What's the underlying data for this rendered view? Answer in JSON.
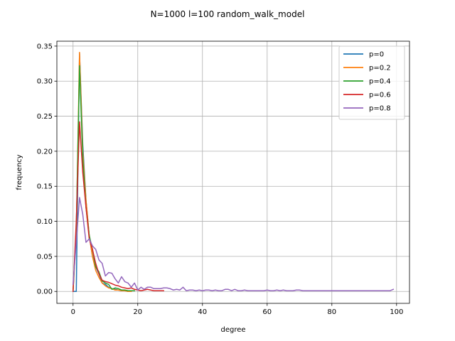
{
  "chart_data": {
    "type": "line",
    "title": "N=1000 l=100 random_walk_model",
    "xlabel": "degree",
    "ylabel": "frequency",
    "xlim": [
      -5,
      104
    ],
    "ylim": [
      -0.017,
      0.357
    ],
    "xticks": [
      0,
      20,
      40,
      60,
      80,
      100
    ],
    "yticks": [
      0.0,
      0.05,
      0.1,
      0.15,
      0.2,
      0.25,
      0.3,
      0.35
    ],
    "xtick_labels": [
      "0",
      "20",
      "40",
      "60",
      "80",
      "100"
    ],
    "ytick_labels": [
      "0.00",
      "0.05",
      "0.10",
      "0.15",
      "0.20",
      "0.25",
      "0.30",
      "0.35"
    ],
    "grid": true,
    "legend_position": "top-right",
    "series": [
      {
        "name": "p=0",
        "color": "#1f77b4",
        "x": [
          0,
          1,
          2,
          3,
          4,
          5,
          6,
          7,
          8,
          9,
          10,
          11,
          12,
          13,
          14,
          15,
          16,
          17,
          18
        ],
        "y": [
          0.0,
          0.0,
          0.34,
          0.21,
          0.13,
          0.08,
          0.05,
          0.035,
          0.025,
          0.012,
          0.01,
          0.006,
          0.004,
          0.003,
          0.002,
          0.001,
          0.001,
          0.0,
          0.0
        ]
      },
      {
        "name": "p=0.2",
        "color": "#ff7f0e",
        "x": [
          0,
          1,
          2,
          3,
          4,
          5,
          6,
          7,
          8,
          9,
          10,
          11,
          12,
          13,
          14,
          15,
          16,
          17,
          18
        ],
        "y": [
          0.0,
          0.08,
          0.341,
          0.2,
          0.13,
          0.08,
          0.05,
          0.03,
          0.02,
          0.012,
          0.008,
          0.005,
          0.004,
          0.002,
          0.002,
          0.001,
          0.001,
          0.0,
          0.0
        ]
      },
      {
        "name": "p=0.4",
        "color": "#2ca02c",
        "x": [
          0,
          1,
          2,
          3,
          4,
          5,
          6,
          7,
          8,
          9,
          10,
          11,
          12,
          13,
          14,
          15,
          16,
          17,
          18,
          19
        ],
        "y": [
          0.0,
          0.09,
          0.322,
          0.19,
          0.12,
          0.08,
          0.06,
          0.035,
          0.028,
          0.015,
          0.012,
          0.01,
          0.003,
          0.005,
          0.004,
          0.002,
          0.002,
          0.001,
          0.001,
          0.001
        ]
      },
      {
        "name": "p=0.6",
        "color": "#d62728",
        "x": [
          0,
          1,
          2,
          3,
          4,
          5,
          6,
          7,
          8,
          9,
          10,
          11,
          12,
          13,
          14,
          15,
          16,
          17,
          18,
          19,
          20,
          21,
          22,
          23,
          24,
          25,
          26,
          27,
          28
        ],
        "y": [
          0.0,
          0.1,
          0.242,
          0.17,
          0.12,
          0.075,
          0.06,
          0.04,
          0.025,
          0.016,
          0.014,
          0.013,
          0.011,
          0.009,
          0.008,
          0.006,
          0.005,
          0.004,
          0.005,
          0.003,
          0.002,
          0.001,
          0.002,
          0.003,
          0.002,
          0.001,
          0.001,
          0.001,
          0.001
        ]
      },
      {
        "name": "p=0.8",
        "color": "#9467bd",
        "x": [
          0,
          1,
          2,
          3,
          4,
          5,
          6,
          7,
          8,
          9,
          10,
          11,
          12,
          13,
          14,
          15,
          16,
          17,
          18,
          19,
          20,
          21,
          22,
          23,
          24,
          25,
          26,
          27,
          28,
          29,
          30,
          31,
          32,
          33,
          34,
          35,
          36,
          37,
          38,
          39,
          40,
          41,
          42,
          43,
          44,
          45,
          46,
          47,
          48,
          49,
          50,
          51,
          52,
          53,
          54,
          55,
          56,
          57,
          58,
          59,
          60,
          61,
          62,
          63,
          64,
          65,
          66,
          67,
          68,
          69,
          70,
          71,
          72,
          73,
          74,
          75,
          76,
          77,
          78,
          79,
          80,
          81,
          82,
          83,
          84,
          85,
          86,
          87,
          88,
          89,
          90,
          91,
          92,
          93,
          94,
          95,
          96,
          97,
          98,
          99
        ],
        "y": [
          0.01,
          0.07,
          0.134,
          0.11,
          0.07,
          0.075,
          0.065,
          0.06,
          0.045,
          0.04,
          0.022,
          0.027,
          0.026,
          0.018,
          0.012,
          0.021,
          0.014,
          0.012,
          0.006,
          0.012,
          0.002,
          0.006,
          0.003,
          0.006,
          0.006,
          0.004,
          0.004,
          0.004,
          0.005,
          0.005,
          0.004,
          0.002,
          0.003,
          0.002,
          0.006,
          0.001,
          0.002,
          0.002,
          0.001,
          0.002,
          0.001,
          0.002,
          0.002,
          0.001,
          0.002,
          0.001,
          0.001,
          0.003,
          0.003,
          0.001,
          0.003,
          0.001,
          0.001,
          0.002,
          0.001,
          0.001,
          0.001,
          0.001,
          0.001,
          0.001,
          0.002,
          0.001,
          0.001,
          0.002,
          0.001,
          0.002,
          0.001,
          0.001,
          0.001,
          0.002,
          0.002,
          0.001,
          0.001,
          0.001,
          0.001,
          0.001,
          0.001,
          0.001,
          0.001,
          0.001,
          0.001,
          0.001,
          0.001,
          0.001,
          0.001,
          0.001,
          0.001,
          0.001,
          0.001,
          0.001,
          0.001,
          0.001,
          0.001,
          0.001,
          0.001,
          0.001,
          0.001,
          0.001,
          0.001,
          0.003
        ]
      }
    ]
  }
}
